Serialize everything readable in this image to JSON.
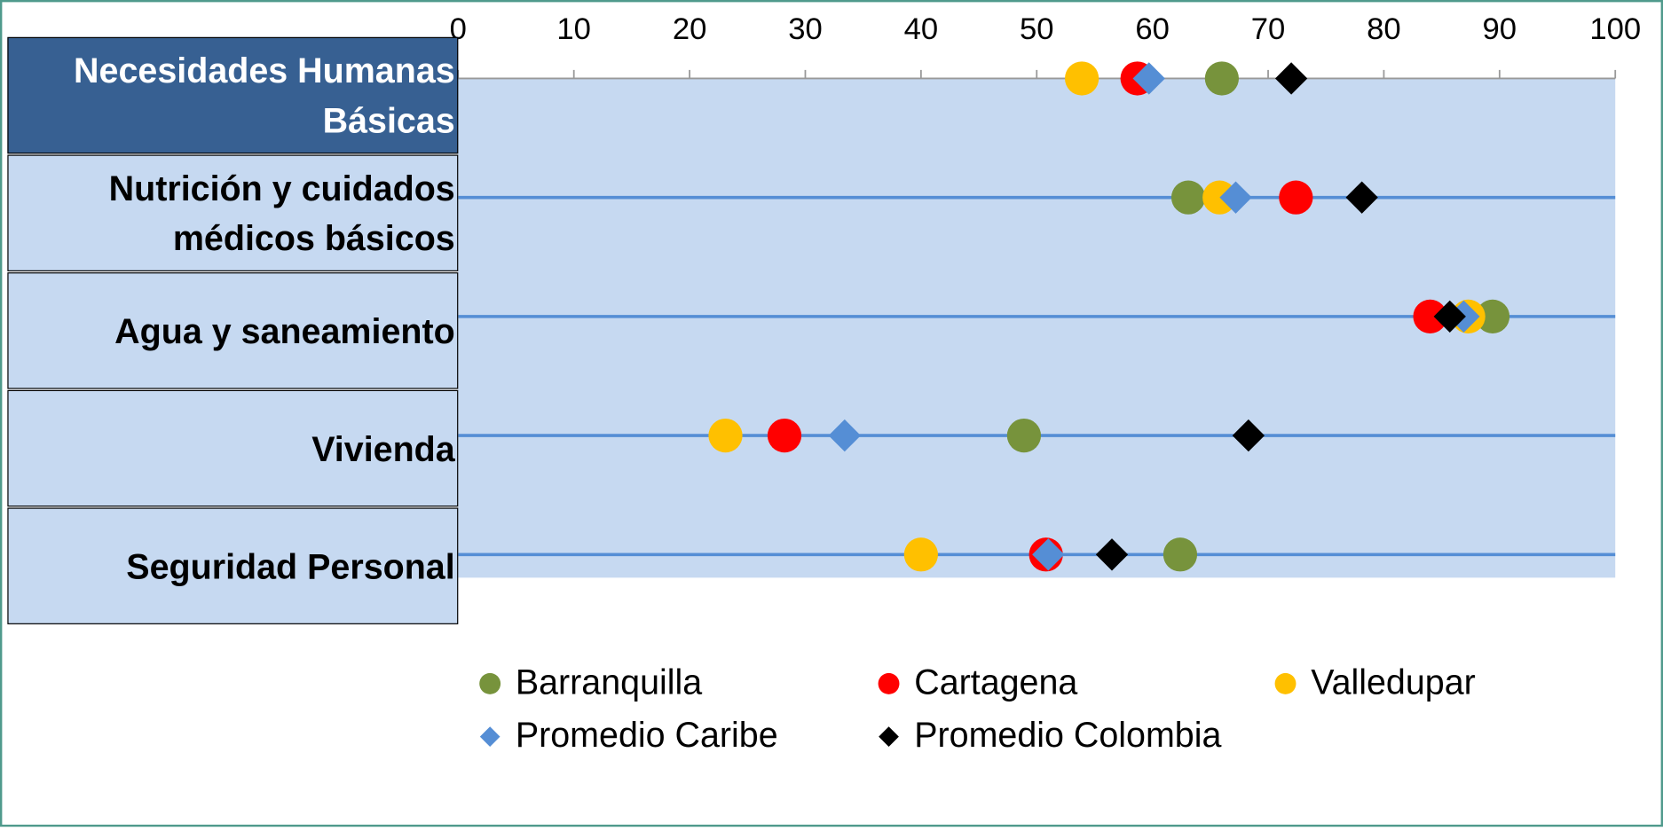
{
  "chart_data": {
    "type": "dot",
    "categories": [
      "Necesidades Humanas Básicas",
      "Nutrición y cuidados médicos básicos",
      "Agua y saneamiento",
      "Vivienda",
      "Seguridad Personal"
    ],
    "xlim": [
      0,
      100
    ],
    "xticks": [
      0,
      10,
      20,
      30,
      40,
      50,
      60,
      70,
      80,
      90,
      100
    ],
    "series": [
      {
        "name": "Barranquilla",
        "color": "#77933C",
        "marker": "circle",
        "values": [
          66.0,
          63.1,
          89.4,
          48.9,
          62.4
        ]
      },
      {
        "name": "Cartagena",
        "color": "#FF0000",
        "marker": "circle",
        "values": [
          58.7,
          72.4,
          84.0,
          28.2,
          50.8
        ]
      },
      {
        "name": "Valledupar",
        "color": "#FFC000",
        "marker": "circle",
        "values": [
          53.9,
          65.8,
          87.3,
          23.1,
          40.0
        ]
      },
      {
        "name": "Promedio Caribe",
        "color": "#558ED5",
        "marker": "diamond",
        "values": [
          59.7,
          67.2,
          86.9,
          33.4,
          51.0
        ]
      },
      {
        "name": "Promedio Colombia",
        "color": "#000000",
        "marker": "diamond",
        "values": [
          72.0,
          78.1,
          85.7,
          68.3,
          56.5
        ]
      }
    ]
  }
}
